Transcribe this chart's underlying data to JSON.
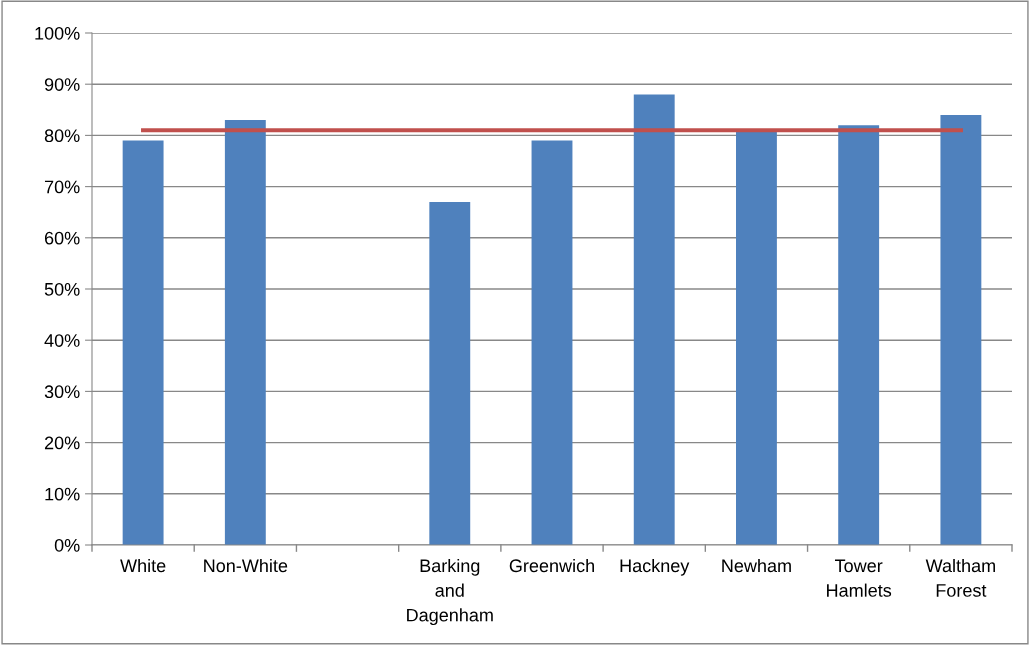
{
  "chart_data": {
    "type": "bar",
    "categories": [
      "White",
      "Non-White",
      null,
      "Barking\nand\nDagenham",
      "Greenwich",
      "Hackney",
      "Newham",
      "Tower\nHamlets",
      "Waltham\nForest"
    ],
    "series": [
      {
        "color": "#4f81bd",
        "values": [
          79,
          83,
          null,
          67,
          79,
          88,
          81,
          82,
          84
        ]
      },
      {
        "type": "line",
        "color": "#c0504d",
        "values": [
          81,
          81,
          81,
          81,
          81,
          81,
          81,
          81,
          81
        ]
      }
    ],
    "ylim": [
      0,
      100
    ],
    "yticks": [
      {
        "value": 0,
        "label": "0%"
      },
      {
        "value": 10,
        "label": "10%"
      },
      {
        "value": 20,
        "label": "20%"
      },
      {
        "value": 30,
        "label": "30%"
      },
      {
        "value": 40,
        "label": "40%"
      },
      {
        "value": 50,
        "label": "50%"
      },
      {
        "value": 60,
        "label": "60%"
      },
      {
        "value": 70,
        "label": "70%"
      },
      {
        "value": 80,
        "label": "80%"
      },
      {
        "value": 90,
        "label": "90%"
      },
      {
        "value": 100,
        "label": "100%"
      }
    ],
    "grid": "y",
    "legend": false
  }
}
